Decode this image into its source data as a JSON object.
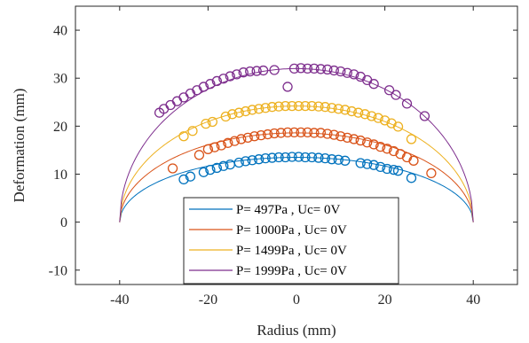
{
  "chart_data": {
    "type": "scatter",
    "title": "",
    "xlabel": "Radius (mm)",
    "ylabel": "Deformation (mm)",
    "xlim": [
      -50,
      50
    ],
    "ylim": [
      -13,
      45
    ],
    "xticks": [
      -40,
      -20,
      0,
      20,
      40
    ],
    "yticks": [
      -10,
      0,
      10,
      20,
      30,
      40
    ],
    "xtick_labels": [
      "-40",
      "-20",
      "0",
      "20",
      "40"
    ],
    "ytick_labels": [
      "-10",
      "0",
      "10",
      "20",
      "30",
      "40"
    ],
    "grid": false,
    "legend_position": "bottom-center",
    "series": [
      {
        "name": "P= 497Pa , Uc= 0V",
        "color": "#0072BD",
        "fit_peak": 13.5,
        "fit_radius": 40,
        "points": [
          [
            -25.5,
            8.9
          ],
          [
            -24,
            9.5
          ],
          [
            -21,
            10.4
          ],
          [
            -19.5,
            10.9
          ],
          [
            -18,
            11.3
          ],
          [
            -16.5,
            11.7
          ],
          [
            -15,
            12.0
          ],
          [
            -13,
            12.4
          ],
          [
            -11.5,
            12.7
          ],
          [
            -10,
            12.9
          ],
          [
            -8.5,
            13.1
          ],
          [
            -7,
            13.3
          ],
          [
            -5.5,
            13.4
          ],
          [
            -4,
            13.5
          ],
          [
            -2.5,
            13.5
          ],
          [
            -1,
            13.6
          ],
          [
            0.5,
            13.6
          ],
          [
            2,
            13.5
          ],
          [
            3.5,
            13.5
          ],
          [
            5,
            13.4
          ],
          [
            6.5,
            13.3
          ],
          [
            8,
            13.1
          ],
          [
            9.5,
            13.0
          ],
          [
            11,
            12.8
          ],
          [
            14.5,
            12.3
          ],
          [
            16,
            12.1
          ],
          [
            17.5,
            11.9
          ],
          [
            19,
            11.5
          ],
          [
            20.5,
            11.1
          ],
          [
            22,
            10.9
          ],
          [
            23,
            10.7
          ],
          [
            26,
            9.2
          ]
        ]
      },
      {
        "name": "P= 1000Pa , Uc= 0V",
        "color": "#D95319",
        "fit_peak": 18.6,
        "fit_radius": 40,
        "points": [
          [
            -28,
            11.2
          ],
          [
            -22,
            14.0
          ],
          [
            -20,
            15.2
          ],
          [
            -18.5,
            15.6
          ],
          [
            -17,
            16.0
          ],
          [
            -15.5,
            16.5
          ],
          [
            -14,
            16.9
          ],
          [
            -12.5,
            17.3
          ],
          [
            -11,
            17.6
          ],
          [
            -9.5,
            17.9
          ],
          [
            -8,
            18.1
          ],
          [
            -6.5,
            18.3
          ],
          [
            -5,
            18.5
          ],
          [
            -3.5,
            18.6
          ],
          [
            -2,
            18.7
          ],
          [
            -0.5,
            18.7
          ],
          [
            1,
            18.7
          ],
          [
            2.5,
            18.7
          ],
          [
            4,
            18.6
          ],
          [
            5.5,
            18.6
          ],
          [
            7,
            18.4
          ],
          [
            8.5,
            18.2
          ],
          [
            10,
            17.9
          ],
          [
            11.5,
            17.6
          ],
          [
            13,
            17.3
          ],
          [
            14.5,
            17.0
          ],
          [
            16,
            16.6
          ],
          [
            17.5,
            16.2
          ],
          [
            19,
            15.7
          ],
          [
            20.5,
            15.3
          ],
          [
            22,
            14.8
          ],
          [
            23.5,
            14.2
          ],
          [
            25,
            13.5
          ],
          [
            26.5,
            12.8
          ],
          [
            30.5,
            10.2
          ]
        ]
      },
      {
        "name": "P= 1499Pa , Uc= 0V",
        "color": "#EDB120",
        "fit_peak": 24.2,
        "fit_radius": 40,
        "points": [
          [
            -25.5,
            17.9
          ],
          [
            -23.5,
            19.0
          ],
          [
            -20.5,
            20.5
          ],
          [
            -19,
            20.9
          ],
          [
            -16,
            22.0
          ],
          [
            -14.5,
            22.5
          ],
          [
            -13,
            22.8
          ],
          [
            -11.5,
            23.1
          ],
          [
            -10,
            23.4
          ],
          [
            -8.5,
            23.6
          ],
          [
            -7,
            23.8
          ],
          [
            -5.5,
            24.0
          ],
          [
            -4,
            24.1
          ],
          [
            -2.5,
            24.2
          ],
          [
            -1,
            24.2
          ],
          [
            0.5,
            24.2
          ],
          [
            2,
            24.2
          ],
          [
            3.5,
            24.2
          ],
          [
            5,
            24.1
          ],
          [
            6.5,
            24.0
          ],
          [
            8,
            23.8
          ],
          [
            9.5,
            23.6
          ],
          [
            11,
            23.4
          ],
          [
            12.5,
            23.1
          ],
          [
            14,
            22.8
          ],
          [
            15.5,
            22.5
          ],
          [
            17,
            22.1
          ],
          [
            18.5,
            21.7
          ],
          [
            20,
            21.2
          ],
          [
            21.5,
            20.6
          ],
          [
            23,
            19.9
          ],
          [
            26,
            17.3
          ]
        ]
      },
      {
        "name": "P= 1999Pa , Uc= 0V",
        "color": "#7E2F8E",
        "fit_peak": 32.0,
        "fit_radius": 40,
        "points": [
          [
            -31,
            22.8
          ],
          [
            -30,
            23.6
          ],
          [
            -28.5,
            24.4
          ],
          [
            -27,
            25.2
          ],
          [
            -25.5,
            26.0
          ],
          [
            -24,
            26.8
          ],
          [
            -22.5,
            27.5
          ],
          [
            -21,
            28.2
          ],
          [
            -19.5,
            28.8
          ],
          [
            -18,
            29.4
          ],
          [
            -16.5,
            29.9
          ],
          [
            -15,
            30.4
          ],
          [
            -13.5,
            30.8
          ],
          [
            -12,
            31.2
          ],
          [
            -10.5,
            31.4
          ],
          [
            -9,
            31.5
          ],
          [
            -7.5,
            31.6
          ],
          [
            -5,
            31.7
          ],
          [
            -2,
            28.2
          ],
          [
            -0.5,
            32.0
          ],
          [
            1,
            32.1
          ],
          [
            2.5,
            32.0
          ],
          [
            4,
            32.0
          ],
          [
            5.5,
            31.9
          ],
          [
            7,
            31.8
          ],
          [
            8.5,
            31.6
          ],
          [
            10,
            31.4
          ],
          [
            11.5,
            31.1
          ],
          [
            13,
            30.8
          ],
          [
            14.5,
            30.3
          ],
          [
            16,
            29.6
          ],
          [
            17.5,
            28.8
          ],
          [
            21,
            27.5
          ],
          [
            22.5,
            26.5
          ],
          [
            25,
            24.7
          ],
          [
            29,
            22.1
          ]
        ]
      }
    ]
  }
}
